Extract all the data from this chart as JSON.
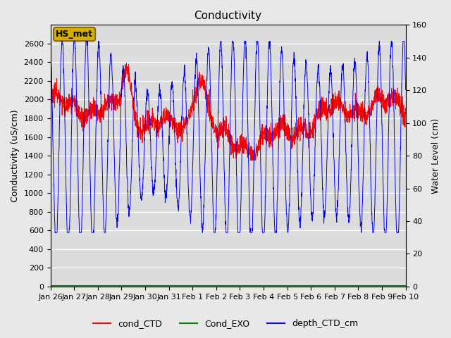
{
  "title": "Conductivity",
  "ylabel_left": "Conductivity (uS/cm)",
  "ylabel_right": "Water Level (cm)",
  "ylim_left": [
    0,
    2800
  ],
  "ylim_right": [
    0,
    160
  ],
  "yticks_left": [
    0,
    200,
    400,
    600,
    800,
    1000,
    1200,
    1400,
    1600,
    1800,
    2000,
    2200,
    2400,
    2600
  ],
  "yticks_right": [
    0,
    20,
    40,
    60,
    80,
    100,
    120,
    140,
    160
  ],
  "background_color": "#e8e8e8",
  "plot_bg_color": "#dcdcdc",
  "annotation_box": "HS_met",
  "annotation_facecolor": "#d4b000",
  "annotation_edgecolor": "#8b6800",
  "tick_labels": [
    "Jan 26",
    "Jan 27",
    "Jan 28",
    "Jan 29",
    "Jan 30",
    "Jan 31",
    "Feb 1",
    "Feb 2",
    "Feb 3",
    "Feb 4",
    "Feb 5",
    "Feb 6",
    "Feb 7",
    "Feb 8",
    "Feb 9",
    "Feb 10"
  ],
  "num_points": 2000,
  "seed": 42,
  "title_fontsize": 11,
  "label_fontsize": 9,
  "tick_fontsize": 8
}
